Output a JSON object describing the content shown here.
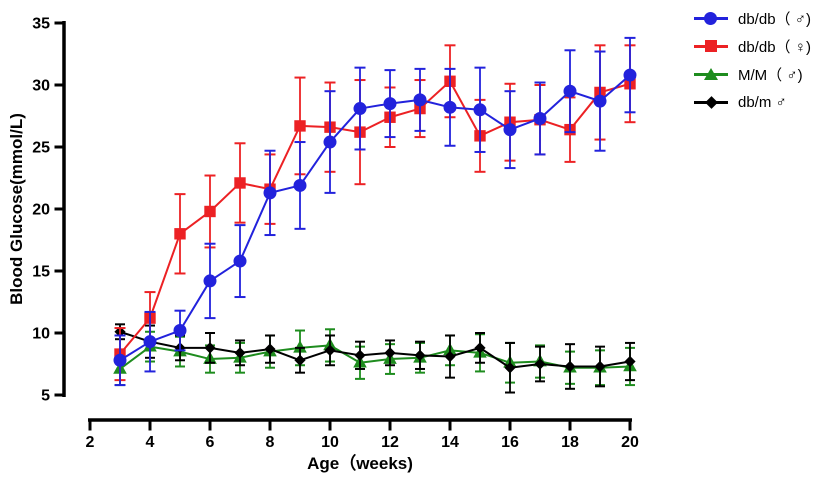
{
  "chart_data": {
    "type": "line",
    "title": "",
    "xlabel": "Age（weeks)",
    "ylabel": "Blood Glucose(mmol/L)",
    "x": [
      3,
      4,
      5,
      6,
      7,
      8,
      9,
      10,
      11,
      12,
      13,
      14,
      15,
      16,
      17,
      18,
      19,
      20
    ],
    "x_ticks": [
      2,
      4,
      6,
      8,
      10,
      12,
      14,
      16,
      18,
      20
    ],
    "y_ticks": [
      5,
      10,
      15,
      20,
      25,
      30,
      35
    ],
    "xlim": [
      2,
      20
    ],
    "ylim": [
      5,
      35
    ],
    "grid": false,
    "legend_position": "right-top",
    "error_bars": true,
    "series": [
      {
        "name": "db/db（ ♂)",
        "marker": "circle",
        "color": "#2222DC",
        "values": [
          7.8,
          9.3,
          10.2,
          14.2,
          15.8,
          21.3,
          21.9,
          25.4,
          28.1,
          28.5,
          28.8,
          28.2,
          28.0,
          26.4,
          27.3,
          29.5,
          28.7,
          30.8
        ],
        "errors": [
          2.0,
          2.4,
          1.6,
          3.0,
          2.9,
          3.4,
          3.5,
          4.1,
          3.3,
          2.7,
          2.5,
          3.1,
          3.4,
          3.1,
          2.9,
          3.3,
          4.0,
          3.0
        ]
      },
      {
        "name": "db/db（ ♀)",
        "marker": "square",
        "color": "#EC2124",
        "values": [
          8.3,
          11.2,
          18.0,
          19.8,
          22.1,
          21.6,
          26.7,
          26.6,
          26.2,
          27.4,
          28.1,
          30.3,
          25.9,
          27.0,
          27.2,
          26.4,
          29.4,
          30.1
        ],
        "errors": [
          2.1,
          2.1,
          3.2,
          2.9,
          3.2,
          2.8,
          3.9,
          3.6,
          4.2,
          2.4,
          2.3,
          2.9,
          2.9,
          3.1,
          2.8,
          2.6,
          3.8,
          3.1
        ]
      },
      {
        "name": "M/M（ ♂)",
        "marker": "triangle",
        "color": "#1E8C1E",
        "values": [
          7.1,
          8.9,
          8.5,
          7.9,
          8.0,
          8.5,
          8.8,
          9.0,
          7.6,
          7.9,
          8.0,
          8.6,
          8.4,
          7.6,
          7.7,
          7.2,
          7.2,
          7.3
        ],
        "errors": [
          1.3,
          1.2,
          1.2,
          1.1,
          1.2,
          1.3,
          1.4,
          1.3,
          1.3,
          1.2,
          1.2,
          1.2,
          1.5,
          1.6,
          1.3,
          1.3,
          1.4,
          1.5
        ]
      },
      {
        "name": "db/m ♂",
        "marker": "diamond",
        "color": "#000000",
        "values": [
          10.1,
          9.3,
          8.8,
          8.8,
          8.4,
          8.7,
          7.8,
          8.6,
          8.2,
          8.4,
          8.2,
          8.1,
          8.8,
          7.2,
          7.5,
          7.3,
          7.3,
          7.7
        ],
        "errors": [
          0.6,
          1.3,
          1.0,
          1.2,
          1.0,
          1.1,
          1.0,
          1.2,
          1.1,
          1.0,
          1.1,
          1.7,
          1.2,
          2.0,
          1.4,
          1.8,
          1.6,
          1.5
        ]
      }
    ]
  }
}
